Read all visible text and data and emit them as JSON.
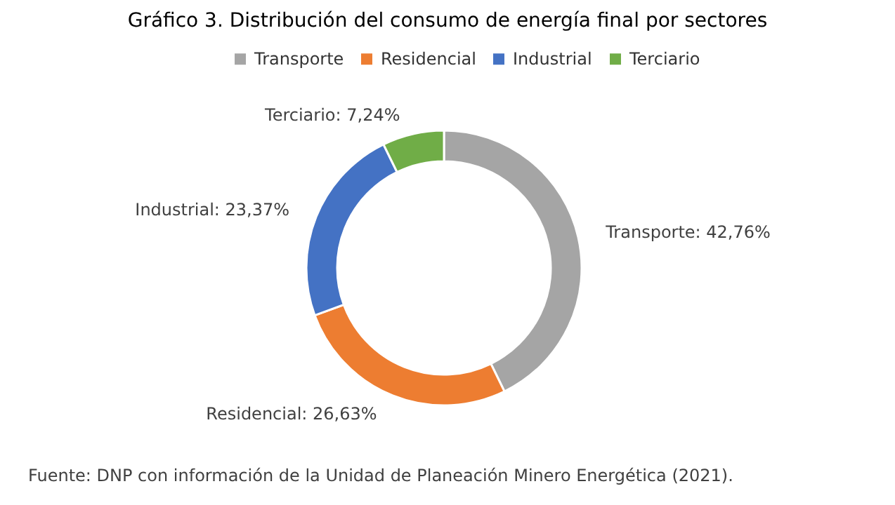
{
  "chart_data": {
    "type": "donut",
    "title": "Gráfico 3. Distribución del consumo de energía final por sectores",
    "categories": [
      "Transporte",
      "Residencial",
      "Industrial",
      "Terciario"
    ],
    "values": [
      42.76,
      26.63,
      23.37,
      7.24
    ],
    "colors": [
      "#a5a5a5",
      "#ed7d31",
      "#4472c4",
      "#70ad47"
    ],
    "value_labels": [
      "Transporte: 42,76%",
      "Residencial: 26,63%",
      "Industrial: 23,37%",
      "Terciario: 7,24%"
    ],
    "legend": "top",
    "annotations": [
      "Fuente: DNP con información de la Unidad de Planeación Minero Energética (2021)."
    ]
  }
}
